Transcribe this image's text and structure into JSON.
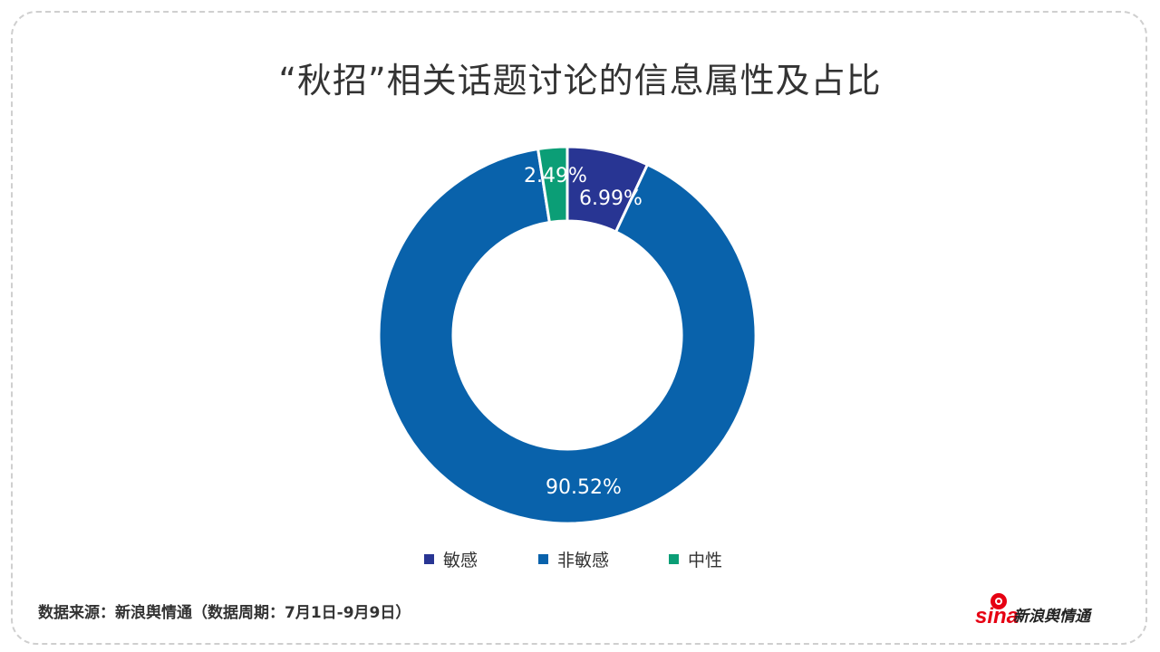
{
  "title": "“秋招”相关话题讨论的信息属性及占比",
  "source": "数据来源：新浪舆情通（数据周期：7月1日-9月9日）",
  "logo": {
    "brand": "sina",
    "text": "新浪舆情通"
  },
  "colors": {
    "sensitive": "#283593",
    "non_sensitive": "#0962ab",
    "neutral": "#0b9e76"
  },
  "chart_data": {
    "type": "pie",
    "style": "donut",
    "categories": [
      "敏感",
      "非敏感",
      "中性"
    ],
    "values": [
      6.99,
      90.52,
      2.49
    ],
    "labels": [
      "6.99%",
      "90.52%",
      "2.49%"
    ],
    "legend": [
      "敏感",
      "非敏感",
      "中性"
    ],
    "legend_position": "bottom"
  }
}
